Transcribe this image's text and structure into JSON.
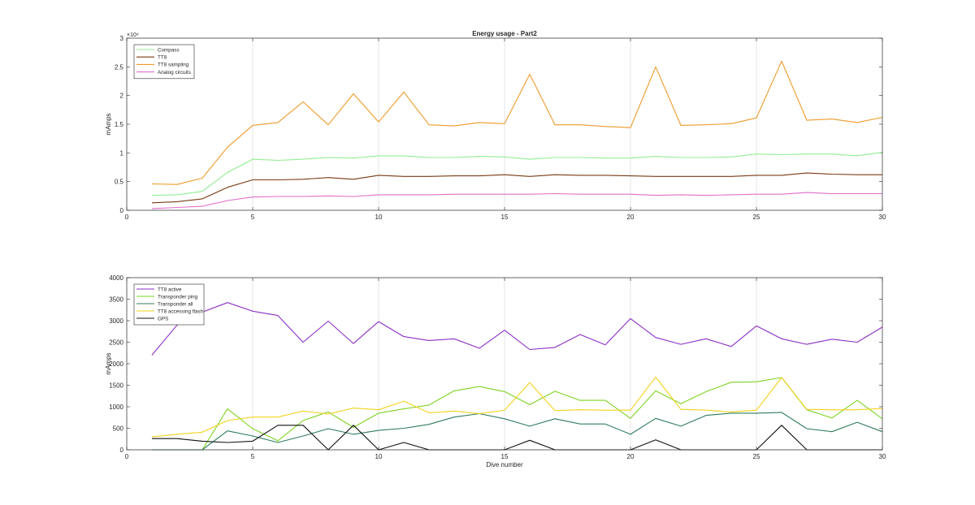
{
  "chart_data": [
    {
      "type": "line",
      "title": "Energy usage - Part2",
      "xlabel": "",
      "ylabel": "mAmps",
      "y_exponent_label": "×10⁴",
      "xlim": [
        0,
        30
      ],
      "ylim": [
        0,
        30000
      ],
      "xticks": [
        "0",
        "5",
        "10",
        "15",
        "20",
        "25",
        "30"
      ],
      "yticks": [
        "0",
        "0.5",
        "1",
        "1.5",
        "2",
        "2.5",
        "3"
      ],
      "grid": "vertical",
      "legend_position": "top-left",
      "x": [
        1,
        2,
        3,
        4,
        5,
        6,
        7,
        8,
        9,
        10,
        11,
        12,
        13,
        14,
        15,
        16,
        17,
        18,
        19,
        20,
        21,
        22,
        23,
        24,
        25,
        26,
        27,
        28,
        29,
        30
      ],
      "series": [
        {
          "name": "Compass",
          "color": "#90ee90",
          "values": [
            2600,
            2700,
            3300,
            6600,
            8900,
            8700,
            8900,
            9200,
            9100,
            9500,
            9500,
            9200,
            9200,
            9400,
            9300,
            8900,
            9200,
            9200,
            9100,
            9100,
            9400,
            9200,
            9200,
            9300,
            9800,
            9700,
            9800,
            9800,
            9500,
            10100
          ]
        },
        {
          "name": "TT8",
          "color": "#7a3a12",
          "values": [
            1300,
            1500,
            2000,
            4000,
            5300,
            5300,
            5400,
            5700,
            5400,
            6100,
            5900,
            5900,
            6000,
            6000,
            6200,
            5900,
            6200,
            6100,
            6100,
            6000,
            5900,
            5900,
            5900,
            5900,
            6100,
            6100,
            6500,
            6300,
            6200,
            6200
          ]
        },
        {
          "name": "TT8 sampling",
          "color": "#ee9a2a",
          "values": [
            4600,
            4500,
            5600,
            11000,
            14800,
            15300,
            18900,
            14900,
            20300,
            15400,
            20600,
            14900,
            14700,
            15300,
            15100,
            23700,
            14900,
            14900,
            14600,
            14400,
            25000,
            14800,
            14900,
            15100,
            16100,
            26000,
            15700,
            15900,
            15300,
            16200
          ]
        },
        {
          "name": "Analog circuits",
          "color": "#e26fc9",
          "values": [
            300,
            500,
            700,
            1700,
            2300,
            2400,
            2400,
            2500,
            2400,
            2700,
            2700,
            2700,
            2800,
            2800,
            2800,
            2800,
            2900,
            2800,
            2800,
            2800,
            2600,
            2700,
            2600,
            2700,
            2800,
            2800,
            3100,
            2900,
            2900,
            2900
          ]
        }
      ]
    },
    {
      "type": "line",
      "title": "",
      "xlabel": "Dive number",
      "ylabel": "mAmps",
      "xlim": [
        0,
        30
      ],
      "ylim": [
        0,
        4000
      ],
      "xticks": [
        "0",
        "5",
        "10",
        "15",
        "20",
        "25",
        "30"
      ],
      "yticks": [
        "0",
        "500",
        "1000",
        "1500",
        "2000",
        "2500",
        "3000",
        "3500",
        "4000"
      ],
      "grid": "vertical",
      "legend_position": "top-left",
      "x": [
        1,
        2,
        3,
        4,
        5,
        6,
        7,
        8,
        9,
        10,
        11,
        12,
        13,
        14,
        15,
        16,
        17,
        18,
        19,
        20,
        21,
        22,
        23,
        24,
        25,
        26,
        27,
        28,
        29,
        30
      ],
      "series": [
        {
          "name": "TT8 active",
          "color": "#8b2fc6",
          "values": [
            2200,
            2900,
            3200,
            3420,
            3220,
            3120,
            2500,
            2990,
            2470,
            2980,
            2630,
            2540,
            2580,
            2360,
            2780,
            2330,
            2380,
            2680,
            2440,
            3050,
            2610,
            2450,
            2580,
            2400,
            2880,
            2580,
            2450,
            2570,
            2500,
            2850
          ]
        },
        {
          "name": "Transponder ping",
          "color": "#7ed321",
          "values": [
            0,
            0,
            0,
            950,
            490,
            210,
            680,
            880,
            520,
            850,
            950,
            1040,
            1370,
            1470,
            1350,
            1050,
            1360,
            1150,
            1150,
            730,
            1370,
            1070,
            1350,
            1570,
            1580,
            1680,
            930,
            740,
            1150,
            720
          ]
        },
        {
          "name": "Transponder all",
          "color": "#2f7d5a",
          "values": [
            0,
            0,
            0,
            440,
            320,
            170,
            320,
            490,
            360,
            450,
            500,
            590,
            760,
            840,
            720,
            550,
            720,
            600,
            600,
            360,
            730,
            550,
            800,
            850,
            850,
            870,
            490,
            420,
            640,
            420
          ]
        },
        {
          "name": "TT8 accessing flash",
          "color": "#f2d21b",
          "values": [
            300,
            360,
            410,
            680,
            760,
            760,
            900,
            830,
            970,
            930,
            1130,
            860,
            900,
            840,
            920,
            1560,
            910,
            930,
            920,
            920,
            1690,
            940,
            920,
            880,
            920,
            1680,
            940,
            930,
            930,
            960
          ]
        },
        {
          "name": "GPS",
          "color": "#111111",
          "values": [
            260,
            260,
            200,
            170,
            200,
            570,
            570,
            0,
            570,
            0,
            170,
            0,
            0,
            0,
            0,
            220,
            0,
            0,
            0,
            0,
            230,
            0,
            0,
            0,
            0,
            570,
            0,
            0,
            0,
            0
          ]
        }
      ]
    }
  ]
}
